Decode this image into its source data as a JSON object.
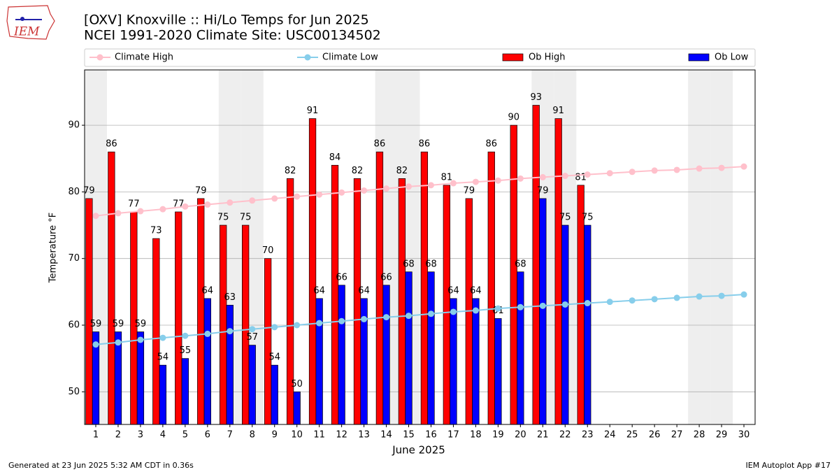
{
  "chart_data": {
    "type": "bar",
    "logo_text": "IEM",
    "title": "[OXV] Knoxville :: Hi/Lo Temps for Jun 2025",
    "subtitle": "NCEI 1991-2020 Climate Site: USC00134502",
    "x_label": "June 2025",
    "y_label": "Temperature °F",
    "footer_left": "Generated at 23 Jun 2025 5:32 AM CDT in 0.36s",
    "footer_right": "IEM Autoplot App #17",
    "x": [
      1,
      2,
      3,
      4,
      5,
      6,
      7,
      8,
      9,
      10,
      11,
      12,
      13,
      14,
      15,
      16,
      17,
      18,
      19,
      20,
      21,
      22,
      23,
      24,
      25,
      26,
      27,
      28,
      29,
      30
    ],
    "xlim": [
      0.5,
      30.5
    ],
    "xticks": [
      1,
      2,
      3,
      4,
      5,
      6,
      7,
      8,
      9,
      10,
      11,
      12,
      13,
      14,
      15,
      16,
      17,
      18,
      19,
      20,
      21,
      22,
      23,
      24,
      25,
      26,
      27,
      28,
      29,
      30
    ],
    "ylim": [
      45.1,
      98.3
    ],
    "yticks": [
      50,
      60,
      70,
      80,
      90
    ],
    "grid": true,
    "legend": "top",
    "shaded_days": [
      1,
      7,
      8,
      14,
      15,
      21,
      22,
      28,
      29
    ],
    "series": [
      {
        "name": "Climate High",
        "type": "line",
        "color": "#ffc0cb",
        "values": [
          76.4,
          76.8,
          77.1,
          77.4,
          77.8,
          78.1,
          78.4,
          78.7,
          79.0,
          79.3,
          79.6,
          79.9,
          80.2,
          80.5,
          80.8,
          81.0,
          81.3,
          81.5,
          81.7,
          82.0,
          82.2,
          82.4,
          82.6,
          82.8,
          83.0,
          83.2,
          83.3,
          83.5,
          83.6,
          83.8
        ]
      },
      {
        "name": "Climate Low",
        "type": "line",
        "color": "#87ceeb",
        "values": [
          57.1,
          57.4,
          57.8,
          58.1,
          58.4,
          58.7,
          59.1,
          59.4,
          59.7,
          60.0,
          60.3,
          60.6,
          60.9,
          61.2,
          61.4,
          61.7,
          62.0,
          62.2,
          62.5,
          62.7,
          62.9,
          63.1,
          63.3,
          63.5,
          63.7,
          63.9,
          64.1,
          64.3,
          64.4,
          64.6
        ]
      },
      {
        "name": "Ob High",
        "type": "bar",
        "color": "#ff0000",
        "values": [
          79,
          86,
          77,
          73,
          77,
          79,
          75,
          75,
          70,
          82,
          91,
          84,
          82,
          86,
          82,
          86,
          81,
          79,
          86,
          90,
          93,
          91,
          81,
          null,
          null,
          null,
          null,
          null,
          null,
          null
        ]
      },
      {
        "name": "Ob Low",
        "type": "bar",
        "color": "#0000ff",
        "values": [
          59,
          59,
          59,
          54,
          55,
          64,
          63,
          57,
          54,
          50,
          64,
          66,
          64,
          66,
          68,
          68,
          64,
          64,
          61,
          68,
          79,
          75,
          75,
          null,
          null,
          null,
          null,
          null,
          null,
          null
        ]
      }
    ]
  }
}
